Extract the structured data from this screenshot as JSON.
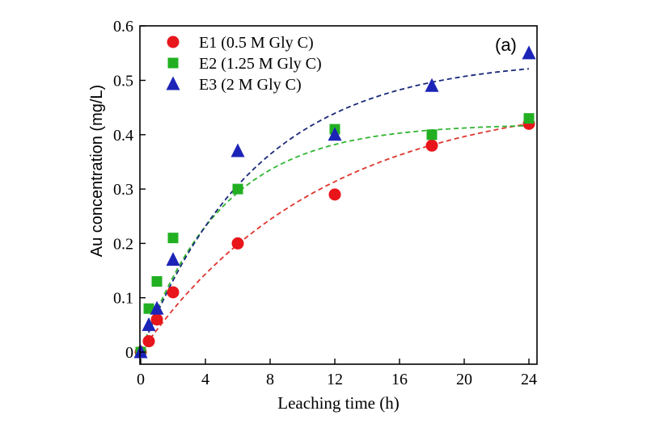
{
  "chart_data": {
    "type": "scatter",
    "panel_label": "(a)",
    "xlabel": "Leaching time (h)",
    "ylabel": "Au concentration (mg/L)",
    "xlim": [
      0,
      25
    ],
    "ylim": [
      -0.02,
      0.6
    ],
    "xticks": [
      0,
      4,
      8,
      12,
      16,
      20,
      24
    ],
    "yticks": [
      0,
      0.1,
      0.2,
      0.3,
      0.4,
      0.5,
      0.6
    ],
    "ytick_labels": [
      "0",
      "0.1",
      "0.2",
      "0.3",
      "0.4",
      "0.5",
      "0.6"
    ],
    "legend_position": "top-left",
    "series": [
      {
        "name": "E1 (0.5 M Gly C)",
        "marker": "circle",
        "color": "#e8151b",
        "line_color": "#e0352e",
        "x": [
          0,
          0.5,
          1,
          2,
          6,
          12,
          18,
          24
        ],
        "y": [
          0,
          0.02,
          0.06,
          0.11,
          0.2,
          0.29,
          0.38,
          0.42
        ],
        "fit": {
          "a": 0.475,
          "k": 0.09
        }
      },
      {
        "name": "E2 (1.25 M Gly C)",
        "marker": "square",
        "color": "#22b022",
        "line_color": "#2fb52f",
        "x": [
          0,
          0.5,
          1,
          2,
          6,
          12,
          18,
          24
        ],
        "y": [
          0,
          0.08,
          0.13,
          0.21,
          0.3,
          0.41,
          0.4,
          0.43
        ],
        "fit": {
          "a": 0.42,
          "k": 0.2
        }
      },
      {
        "name": "E3 (2 M Gly C)",
        "marker": "triangle",
        "color": "#1c24b8",
        "line_color": "#1a2878",
        "x": [
          0,
          0.5,
          1,
          2,
          6,
          12,
          18,
          24
        ],
        "y": [
          0,
          0.05,
          0.08,
          0.17,
          0.37,
          0.4,
          0.49,
          0.55
        ],
        "fit": {
          "a": 0.54,
          "k": 0.14
        }
      }
    ]
  }
}
